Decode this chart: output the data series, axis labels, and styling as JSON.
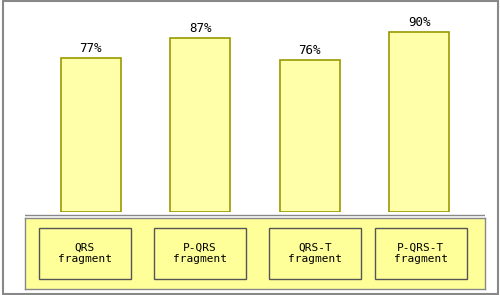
{
  "categories": [
    "QRS\nfragment",
    "P-QRS\nfragment",
    "QRS-T\nfragment",
    "P-QRS-T\nfragment"
  ],
  "values": [
    77,
    87,
    76,
    90
  ],
  "labels": [
    "77%",
    "87%",
    "76%",
    "90%"
  ],
  "bar_color": "#FFFFAA",
  "bar_edge_color": "#999900",
  "background_color": "#FFFFFF",
  "legend_bg_color": "#FFFF99",
  "legend_border_color": "#888888",
  "box_edge_color": "#555555",
  "ylim": [
    0,
    100
  ],
  "bar_width": 0.55,
  "label_fontsize": 9,
  "legend_fontsize": 8
}
